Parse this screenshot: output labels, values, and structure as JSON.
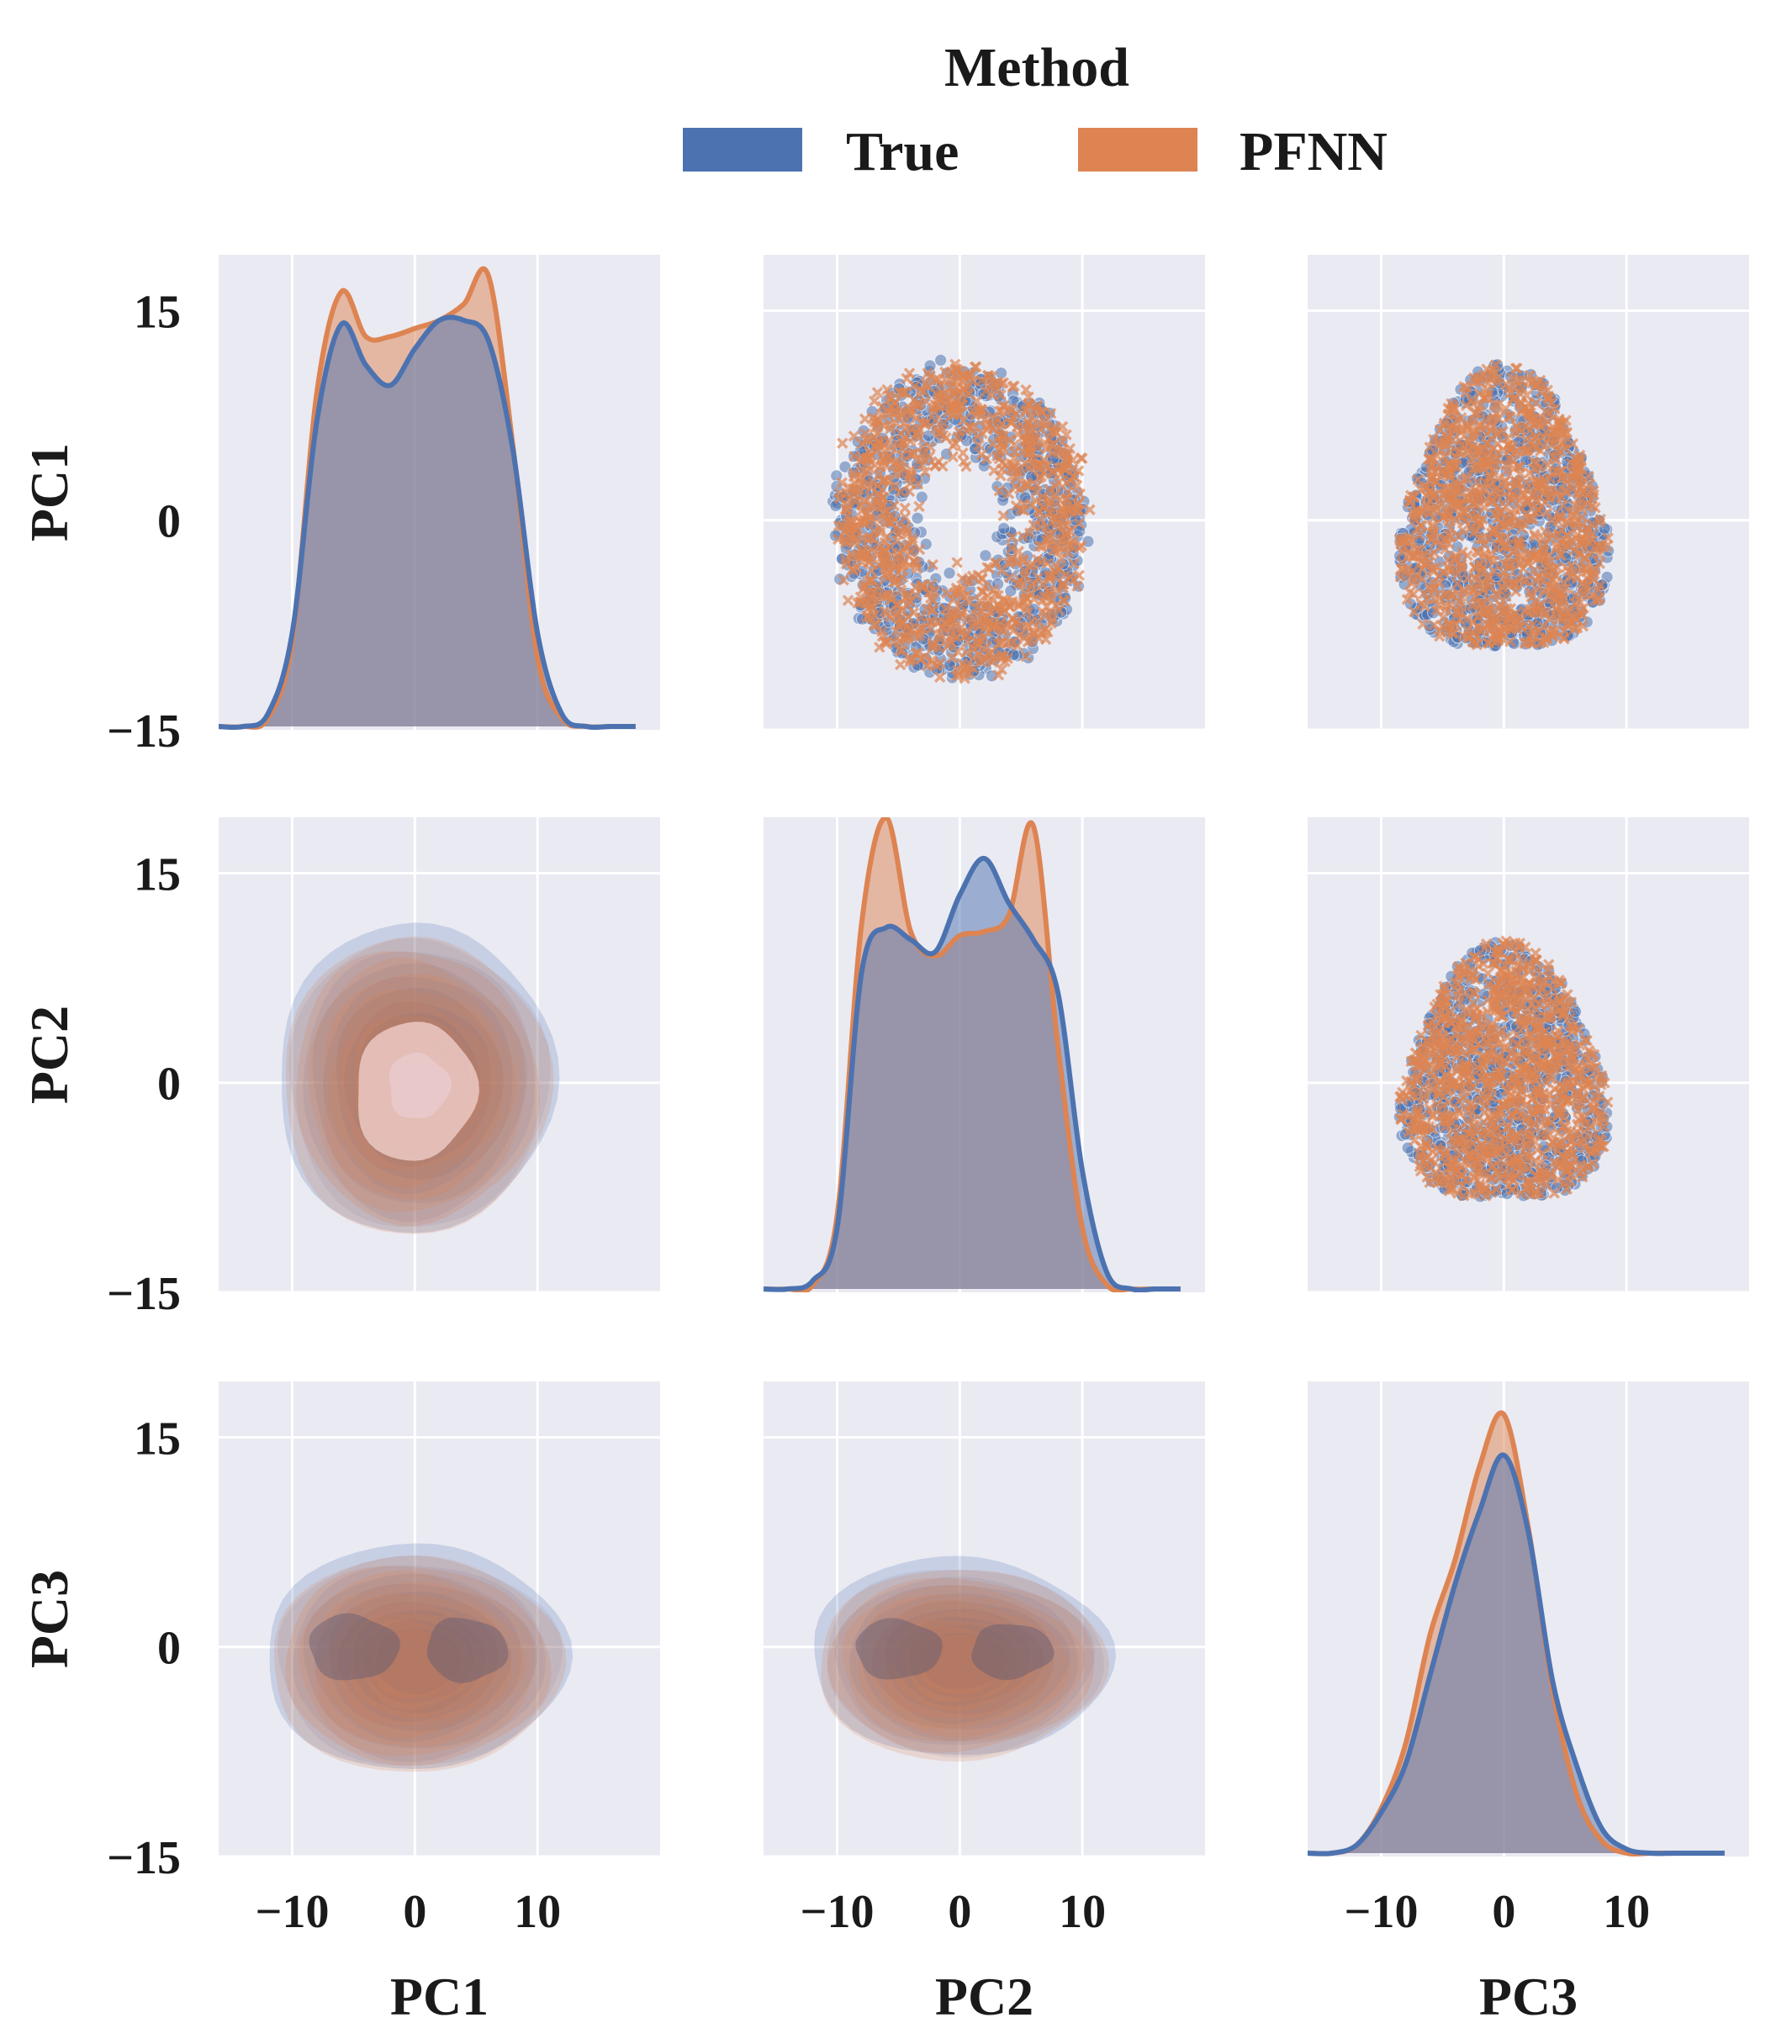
{
  "chart_data": {
    "type": "pairplot",
    "variables": [
      "PC1",
      "PC2",
      "PC3"
    ],
    "legend": {
      "title": "Method",
      "placement": "top-center",
      "entries": [
        {
          "label": "True",
          "color": "#4c72b0"
        },
        {
          "label": "PFNN",
          "color": "#dd8452"
        }
      ]
    },
    "axis": {
      "xlim": [
        -16,
        20
      ],
      "ylim": [
        -15,
        19
      ],
      "xticks": [
        -10,
        0,
        10
      ],
      "yticks": [
        -15,
        0,
        15
      ],
      "xtick_labels": [
        "−10",
        "0",
        "10"
      ],
      "ytick_labels": [
        "−15",
        "0",
        "15"
      ],
      "grid": true,
      "background": "#eaeaf2"
    },
    "diagonal": {
      "type": "kde",
      "x_grid": [
        -16,
        -14,
        -12,
        -10,
        -8,
        -6,
        -4,
        -2,
        0,
        2,
        4,
        6,
        8,
        10,
        12,
        14,
        16,
        18
      ],
      "PC1": {
        "True": [
          0.0,
          0.0,
          0.03,
          0.23,
          0.75,
          0.99,
          0.89,
          0.84,
          0.93,
          1.0,
          1.0,
          0.95,
          0.68,
          0.23,
          0.03,
          0.0,
          0.0,
          0.0
        ],
        "PFNN": [
          0.0,
          0.0,
          0.02,
          0.21,
          0.82,
          1.07,
          0.96,
          0.96,
          0.98,
          1.0,
          1.04,
          1.11,
          0.69,
          0.17,
          0.02,
          0.0,
          0.0,
          0.0
        ]
      },
      "PC2": {
        "True": [
          0.0,
          0.0,
          0.02,
          0.15,
          0.78,
          0.89,
          0.86,
          0.83,
          0.97,
          1.06,
          0.95,
          0.86,
          0.73,
          0.29,
          0.04,
          0.0,
          0.0,
          0.0
        ],
        "PFNN": [
          0.0,
          0.0,
          0.01,
          0.18,
          0.9,
          1.16,
          0.88,
          0.82,
          0.87,
          0.88,
          0.92,
          1.14,
          0.6,
          0.15,
          0.01,
          0.0,
          0.0,
          0.0
        ]
      },
      "PC3": {
        "True": [
          0.0,
          0.0,
          0.02,
          0.1,
          0.22,
          0.44,
          0.66,
          0.84,
          0.98,
          0.79,
          0.42,
          0.21,
          0.06,
          0.01,
          0.0,
          0.0,
          0.0,
          0.0
        ],
        "PFNN": [
          0.0,
          0.0,
          0.02,
          0.11,
          0.27,
          0.54,
          0.72,
          0.95,
          1.08,
          0.8,
          0.4,
          0.14,
          0.03,
          0.0,
          0.0,
          0.0,
          0.0,
          0.0
        ]
      }
    },
    "lower_triangle": {
      "type": "kde_density_contours",
      "panels": [
        {
          "x": "PC1",
          "y": "PC2",
          "shape": "ring",
          "center": [
            0,
            0
          ],
          "radius": [
            11,
            11
          ]
        },
        {
          "x": "PC1",
          "y": "PC3",
          "shape": "blob",
          "center": [
            0,
            -1
          ],
          "radius": [
            12,
            8
          ]
        },
        {
          "x": "PC2",
          "y": "PC3",
          "shape": "blob",
          "center": [
            0,
            -1
          ],
          "radius": [
            12,
            7
          ]
        }
      ]
    },
    "upper_triangle": {
      "type": "scatter",
      "markers": {
        "True": "circle",
        "PFNN": "x"
      },
      "panels": [
        {
          "x": "PC2",
          "y": "PC1",
          "shape": "ring",
          "center": [
            0,
            0
          ],
          "radius": [
            10,
            11
          ]
        },
        {
          "x": "PC3",
          "y": "PC1",
          "shape": "blob",
          "center": [
            0,
            0
          ],
          "radius": [
            9,
            11
          ]
        },
        {
          "x": "PC3",
          "y": "PC2",
          "shape": "blob",
          "center": [
            0,
            0
          ],
          "radius": [
            9,
            10
          ]
        }
      ]
    }
  }
}
